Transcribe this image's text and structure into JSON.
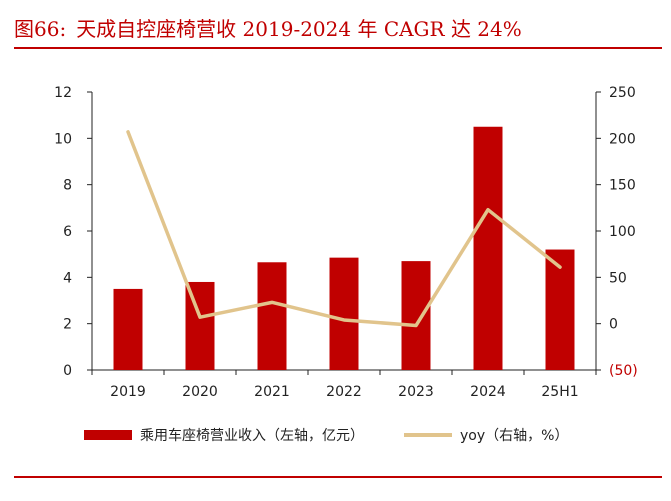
{
  "figure": {
    "label": "图66:",
    "title": "天成自控座椅营收 2019-2024 年 CAGR 达 24%"
  },
  "colors": {
    "bar": "#c00000",
    "line": "#e1c48c",
    "axis": "#222222",
    "accent": "#c00000",
    "negative": "#c00000"
  },
  "chart_data": {
    "type": "bar+line",
    "title": "天成自控座椅营收 2019-2024 年 CAGR 达 24%",
    "categories": [
      "2019",
      "2020",
      "2021",
      "2022",
      "2023",
      "2024",
      "25H1"
    ],
    "series": [
      {
        "name": "乘用车座椅营业收入（左轴，亿元）",
        "type": "bar",
        "axis": "left",
        "values": [
          3.5,
          3.8,
          4.65,
          4.85,
          4.7,
          10.5,
          5.2
        ]
      },
      {
        "name": "yoy（右轴，%）",
        "type": "line",
        "axis": "right",
        "values": [
          207,
          7,
          23,
          4,
          -2,
          123,
          61
        ]
      }
    ],
    "y_left": {
      "min": 0,
      "max": 12,
      "ticks": [
        "0",
        "2",
        "4",
        "6",
        "8",
        "10",
        "12"
      ]
    },
    "y_right": {
      "min": -50,
      "max": 250,
      "ticks": [
        "(50)",
        "0",
        "50",
        "100",
        "150",
        "200",
        "250"
      ]
    },
    "xlabel": "",
    "ylabel": "",
    "legend_position": "bottom"
  }
}
